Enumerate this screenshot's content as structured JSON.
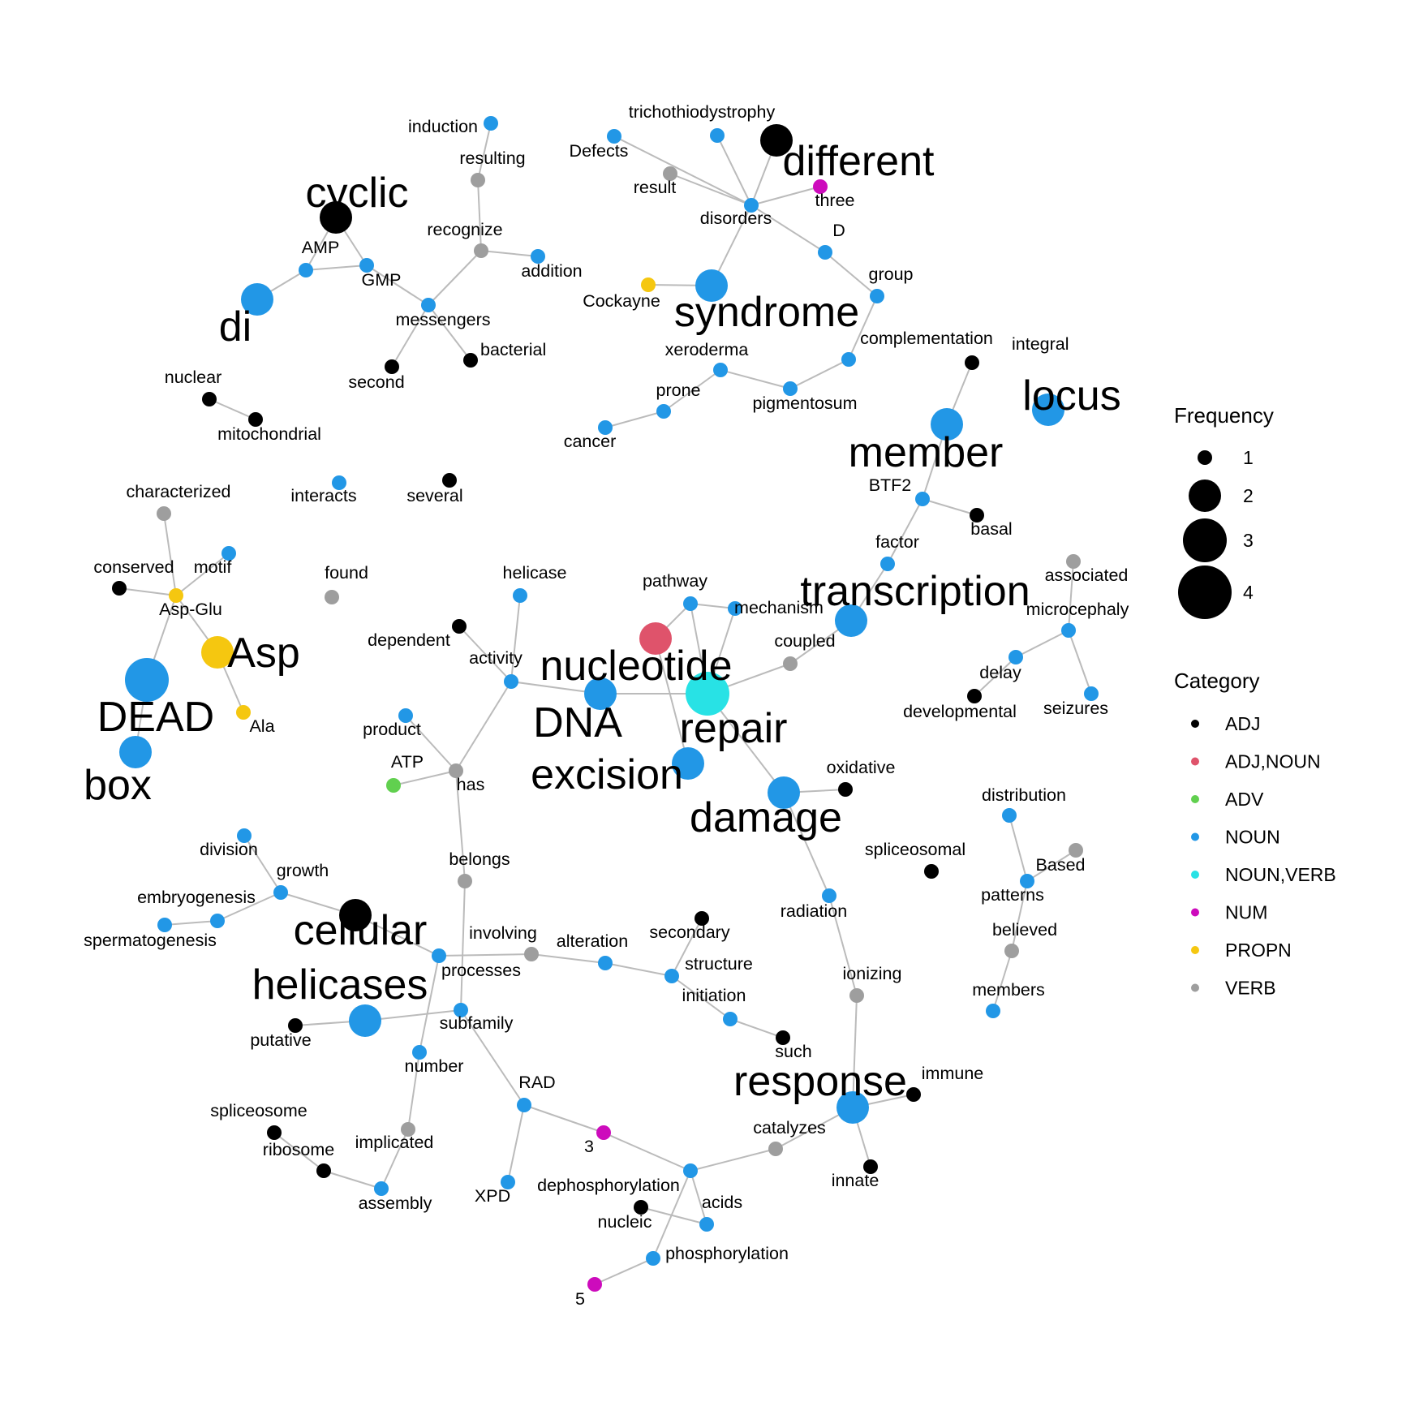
{
  "legend": {
    "frequency_title": "Frequency",
    "frequency_levels": [
      {
        "value": 1,
        "label": "1"
      },
      {
        "value": 2,
        "label": "2"
      },
      {
        "value": 3,
        "label": "3"
      },
      {
        "value": 4,
        "label": "4"
      }
    ],
    "category_title": "Category",
    "categories": [
      {
        "name": "ADJ",
        "color": "#000000"
      },
      {
        "name": "ADJ,NOUN",
        "color": "#DF536B"
      },
      {
        "name": "ADV",
        "color": "#61D04F"
      },
      {
        "name": "NOUN",
        "color": "#2297E6"
      },
      {
        "name": "NOUN,VERB",
        "color": "#28E2E5"
      },
      {
        "name": "NUM",
        "color": "#CD0BBC"
      },
      {
        "name": "PROPN",
        "color": "#F5C710"
      },
      {
        "name": "VERB",
        "color": "#9E9E9E"
      }
    ]
  },
  "nodes": [
    {
      "id": "induction",
      "label": "induction",
      "category": "NOUN",
      "frequency": 1
    },
    {
      "id": "resulting",
      "label": "resulting",
      "category": "VERB",
      "frequency": 1
    },
    {
      "id": "recognize",
      "label": "recognize",
      "category": "VERB",
      "frequency": 1
    },
    {
      "id": "addition",
      "label": "addition",
      "category": "NOUN",
      "frequency": 1
    },
    {
      "id": "messengers",
      "label": "messengers",
      "category": "NOUN",
      "frequency": 1
    },
    {
      "id": "second",
      "label": "second",
      "category": "ADJ",
      "frequency": 1
    },
    {
      "id": "bacterial",
      "label": "bacterial",
      "category": "ADJ",
      "frequency": 1
    },
    {
      "id": "cyclic",
      "label": "cyclic",
      "category": "ADJ",
      "frequency": 2
    },
    {
      "id": "AMP",
      "label": "AMP",
      "category": "NOUN",
      "frequency": 1
    },
    {
      "id": "GMP",
      "label": "GMP",
      "category": "NOUN",
      "frequency": 1
    },
    {
      "id": "di",
      "label": "di",
      "category": "NOUN",
      "frequency": 2
    },
    {
      "id": "nuclear",
      "label": "nuclear",
      "category": "ADJ",
      "frequency": 1
    },
    {
      "id": "mitochondrial",
      "label": "mitochondrial",
      "category": "ADJ",
      "frequency": 1
    },
    {
      "id": "interacts",
      "label": "interacts",
      "category": "NOUN",
      "frequency": 1
    },
    {
      "id": "several",
      "label": "several",
      "category": "ADJ",
      "frequency": 1
    },
    {
      "id": "trichothiodystrophy",
      "label": "trichothiodystrophy",
      "category": "NOUN",
      "frequency": 1
    },
    {
      "id": "Defects",
      "label": "Defects",
      "category": "NOUN",
      "frequency": 1
    },
    {
      "id": "result",
      "label": "result",
      "category": "VERB",
      "frequency": 1
    },
    {
      "id": "different",
      "label": "different",
      "category": "ADJ",
      "frequency": 2
    },
    {
      "id": "three",
      "label": "three",
      "category": "NUM",
      "frequency": 1
    },
    {
      "id": "disorders",
      "label": "disorders",
      "category": "NOUN",
      "frequency": 1
    },
    {
      "id": "D",
      "label": "D",
      "category": "NOUN",
      "frequency": 1
    },
    {
      "id": "group",
      "label": "group",
      "category": "NOUN",
      "frequency": 1
    },
    {
      "id": "Cockayne",
      "label": "Cockayne",
      "category": "PROPN",
      "frequency": 1
    },
    {
      "id": "syndrome",
      "label": "syndrome",
      "category": "NOUN",
      "frequency": 2
    },
    {
      "id": "complementation",
      "label": "complementation",
      "category": "NOUN",
      "frequency": 1
    },
    {
      "id": "xeroderma",
      "label": "xeroderma",
      "category": "NOUN",
      "frequency": 1
    },
    {
      "id": "prone",
      "label": "prone",
      "category": "NOUN",
      "frequency": 1
    },
    {
      "id": "pigmentosum",
      "label": "pigmentosum",
      "category": "NOUN",
      "frequency": 1
    },
    {
      "id": "cancer",
      "label": "cancer",
      "category": "NOUN",
      "frequency": 1
    },
    {
      "id": "integral",
      "label": "integral",
      "category": "ADJ",
      "frequency": 1
    },
    {
      "id": "locus",
      "label": "locus",
      "category": "NOUN",
      "frequency": 2
    },
    {
      "id": "member",
      "label": "member",
      "category": "NOUN",
      "frequency": 2
    },
    {
      "id": "BTF2",
      "label": "BTF2",
      "category": "NOUN",
      "frequency": 1
    },
    {
      "id": "basal",
      "label": "basal",
      "category": "ADJ",
      "frequency": 1
    },
    {
      "id": "factor",
      "label": "factor",
      "category": "NOUN",
      "frequency": 1
    },
    {
      "id": "transcription",
      "label": "transcription",
      "category": "NOUN",
      "frequency": 2
    },
    {
      "id": "associated",
      "label": "associated",
      "category": "VERB",
      "frequency": 1
    },
    {
      "id": "microcephaly",
      "label": "microcephaly",
      "category": "NOUN",
      "frequency": 1
    },
    {
      "id": "delay",
      "label": "delay",
      "category": "NOUN",
      "frequency": 1
    },
    {
      "id": "developmental",
      "label": "developmental",
      "category": "ADJ",
      "frequency": 1
    },
    {
      "id": "seizures",
      "label": "seizures",
      "category": "NOUN",
      "frequency": 1
    },
    {
      "id": "characterized",
      "label": "characterized",
      "category": "VERB",
      "frequency": 1
    },
    {
      "id": "conserved",
      "label": "conserved",
      "category": "ADJ",
      "frequency": 1
    },
    {
      "id": "motif",
      "label": "motif",
      "category": "NOUN",
      "frequency": 1
    },
    {
      "id": "Asp-Glu",
      "label": "Asp-Glu",
      "category": "PROPN",
      "frequency": 1
    },
    {
      "id": "Asp",
      "label": "Asp",
      "category": "PROPN",
      "frequency": 2
    },
    {
      "id": "Ala",
      "label": "Ala",
      "category": "PROPN",
      "frequency": 1
    },
    {
      "id": "DEAD",
      "label": "DEAD",
      "category": "NOUN",
      "frequency": 3
    },
    {
      "id": "box",
      "label": "box",
      "category": "NOUN",
      "frequency": 2
    },
    {
      "id": "found",
      "label": "found",
      "category": "VERB",
      "frequency": 1
    },
    {
      "id": "helicase",
      "label": "helicase",
      "category": "NOUN",
      "frequency": 1
    },
    {
      "id": "dependent",
      "label": "dependent",
      "category": "ADJ",
      "frequency": 1
    },
    {
      "id": "activity",
      "label": "activity",
      "category": "NOUN",
      "frequency": 1
    },
    {
      "id": "pathway",
      "label": "pathway",
      "category": "NOUN",
      "frequency": 1
    },
    {
      "id": "mechanism",
      "label": "mechanism",
      "category": "NOUN",
      "frequency": 1
    },
    {
      "id": "nucleotide",
      "label": "nucleotide",
      "category": "ADJ,NOUN",
      "frequency": 2
    },
    {
      "id": "coupled",
      "label": "coupled",
      "category": "VERB",
      "frequency": 1
    },
    {
      "id": "DNA",
      "label": "DNA",
      "category": "NOUN",
      "frequency": 2
    },
    {
      "id": "repair",
      "label": "repair",
      "category": "NOUN,VERB",
      "frequency": 3
    },
    {
      "id": "excision",
      "label": "excision",
      "category": "NOUN",
      "frequency": 2
    },
    {
      "id": "damage",
      "label": "damage",
      "category": "NOUN",
      "frequency": 2
    },
    {
      "id": "oxidative",
      "label": "oxidative",
      "category": "ADJ",
      "frequency": 1
    },
    {
      "id": "product",
      "label": "product",
      "category": "NOUN",
      "frequency": 1
    },
    {
      "id": "ATP",
      "label": "ATP",
      "category": "ADV",
      "frequency": 1
    },
    {
      "id": "has",
      "label": "has",
      "category": "VERB",
      "frequency": 1
    },
    {
      "id": "distribution",
      "label": "distribution",
      "category": "NOUN",
      "frequency": 1
    },
    {
      "id": "Based",
      "label": "Based",
      "category": "VERB",
      "frequency": 1
    },
    {
      "id": "patterns",
      "label": "patterns",
      "category": "NOUN",
      "frequency": 1
    },
    {
      "id": "believed",
      "label": "believed",
      "category": "VERB",
      "frequency": 1
    },
    {
      "id": "members",
      "label": "members",
      "category": "NOUN",
      "frequency": 1
    },
    {
      "id": "spliceosomal",
      "label": "spliceosomal",
      "category": "ADJ",
      "frequency": 1
    },
    {
      "id": "division",
      "label": "division",
      "category": "NOUN",
      "frequency": 1
    },
    {
      "id": "growth",
      "label": "growth",
      "category": "NOUN",
      "frequency": 1
    },
    {
      "id": "embryogenesis",
      "label": "embryogenesis",
      "category": "NOUN",
      "frequency": 1
    },
    {
      "id": "spermatogenesis",
      "label": "spermatogenesis",
      "category": "NOUN",
      "frequency": 1
    },
    {
      "id": "cellular",
      "label": "cellular",
      "category": "ADJ",
      "frequency": 2
    },
    {
      "id": "belongs",
      "label": "belongs",
      "category": "VERB",
      "frequency": 1
    },
    {
      "id": "involving",
      "label": "involving",
      "category": "VERB",
      "frequency": 1
    },
    {
      "id": "alteration",
      "label": "alteration",
      "category": "NOUN",
      "frequency": 1
    },
    {
      "id": "secondary",
      "label": "secondary",
      "category": "ADJ",
      "frequency": 1
    },
    {
      "id": "structure",
      "label": "structure",
      "category": "NOUN",
      "frequency": 1
    },
    {
      "id": "processes",
      "label": "processes",
      "category": "NOUN",
      "frequency": 1
    },
    {
      "id": "initiation",
      "label": "initiation",
      "category": "NOUN",
      "frequency": 1
    },
    {
      "id": "such",
      "label": "such",
      "category": "ADJ",
      "frequency": 1
    },
    {
      "id": "radiation",
      "label": "radiation",
      "category": "NOUN",
      "frequency": 1
    },
    {
      "id": "ionizing",
      "label": "ionizing",
      "category": "VERB",
      "frequency": 1
    },
    {
      "id": "helicases",
      "label": "helicases",
      "category": "NOUN",
      "frequency": 2
    },
    {
      "id": "putative",
      "label": "putative",
      "category": "ADJ",
      "frequency": 1
    },
    {
      "id": "subfamily",
      "label": "subfamily",
      "category": "NOUN",
      "frequency": 1
    },
    {
      "id": "number",
      "label": "number",
      "category": "NOUN",
      "frequency": 1
    },
    {
      "id": "response",
      "label": "response",
      "category": "NOUN",
      "frequency": 2
    },
    {
      "id": "immune",
      "label": "immune",
      "category": "ADJ",
      "frequency": 1
    },
    {
      "id": "catalyzes",
      "label": "catalyzes",
      "category": "VERB",
      "frequency": 1
    },
    {
      "id": "innate",
      "label": "innate",
      "category": "ADJ",
      "frequency": 1
    },
    {
      "id": "RAD",
      "label": "RAD",
      "category": "NOUN",
      "frequency": 1
    },
    {
      "id": "3",
      "label": "3",
      "category": "NUM",
      "frequency": 1
    },
    {
      "id": "spliceosome",
      "label": "spliceosome",
      "category": "ADJ",
      "frequency": 1
    },
    {
      "id": "implicated",
      "label": "implicated",
      "category": "VERB",
      "frequency": 1
    },
    {
      "id": "ribosome",
      "label": "ribosome",
      "category": "ADJ",
      "frequency": 1
    },
    {
      "id": "assembly",
      "label": "assembly",
      "category": "NOUN",
      "frequency": 1
    },
    {
      "id": "XPD",
      "label": "XPD",
      "category": "NOUN",
      "frequency": 1
    },
    {
      "id": "dephosphorylation",
      "label": "dephosphorylation",
      "category": "NOUN",
      "frequency": 1
    },
    {
      "id": "acids",
      "label": "acids",
      "category": "NOUN",
      "frequency": 1
    },
    {
      "id": "nucleic",
      "label": "nucleic",
      "category": "ADJ",
      "frequency": 1
    },
    {
      "id": "phosphorylation",
      "label": "phosphorylation",
      "category": "NOUN",
      "frequency": 1
    },
    {
      "id": "5",
      "label": "5",
      "category": "NUM",
      "frequency": 1
    }
  ],
  "edges": [
    [
      "induction",
      "resulting"
    ],
    [
      "resulting",
      "recognize"
    ],
    [
      "recognize",
      "addition"
    ],
    [
      "recognize",
      "messengers"
    ],
    [
      "messengers",
      "second"
    ],
    [
      "messengers",
      "bacterial"
    ],
    [
      "messengers",
      "GMP"
    ],
    [
      "cyclic",
      "AMP"
    ],
    [
      "cyclic",
      "GMP"
    ],
    [
      "AMP",
      "GMP"
    ],
    [
      "AMP",
      "di"
    ],
    [
      "nuclear",
      "mitochondrial"
    ],
    [
      "Defects",
      "disorders"
    ],
    [
      "result",
      "disorders"
    ],
    [
      "trichothiodystrophy",
      "disorders"
    ],
    [
      "different",
      "disorders"
    ],
    [
      "three",
      "disorders"
    ],
    [
      "disorders",
      "D"
    ],
    [
      "disorders",
      "syndrome"
    ],
    [
      "D",
      "group"
    ],
    [
      "group",
      "complementation"
    ],
    [
      "Cockayne",
      "syndrome"
    ],
    [
      "complementation",
      "pigmentosum"
    ],
    [
      "pigmentosum",
      "xeroderma"
    ],
    [
      "xeroderma",
      "prone"
    ],
    [
      "prone",
      "cancer"
    ],
    [
      "integral",
      "member"
    ],
    [
      "member",
      "BTF2"
    ],
    [
      "BTF2",
      "basal"
    ],
    [
      "BTF2",
      "factor"
    ],
    [
      "factor",
      "transcription"
    ],
    [
      "transcription",
      "coupled"
    ],
    [
      "associated",
      "microcephaly"
    ],
    [
      "microcephaly",
      "delay"
    ],
    [
      "microcephaly",
      "seizures"
    ],
    [
      "delay",
      "developmental"
    ],
    [
      "characterized",
      "Asp-Glu"
    ],
    [
      "conserved",
      "Asp-Glu"
    ],
    [
      "motif",
      "Asp-Glu"
    ],
    [
      "Asp-Glu",
      "Asp"
    ],
    [
      "Asp-Glu",
      "DEAD"
    ],
    [
      "Asp",
      "Ala"
    ],
    [
      "DEAD",
      "box"
    ],
    [
      "helicase",
      "activity"
    ],
    [
      "dependent",
      "activity"
    ],
    [
      "activity",
      "DNA"
    ],
    [
      "activity",
      "has"
    ],
    [
      "pathway",
      "mechanism"
    ],
    [
      "pathway",
      "nucleotide"
    ],
    [
      "pathway",
      "repair"
    ],
    [
      "mechanism",
      "repair"
    ],
    [
      "nucleotide",
      "excision"
    ],
    [
      "DNA",
      "repair"
    ],
    [
      "repair",
      "coupled"
    ],
    [
      "repair",
      "damage"
    ],
    [
      "damage",
      "oxidative"
    ],
    [
      "damage",
      "radiation"
    ],
    [
      "product",
      "has"
    ],
    [
      "ATP",
      "has"
    ],
    [
      "has",
      "belongs"
    ],
    [
      "belongs",
      "subfamily"
    ],
    [
      "distribution",
      "patterns"
    ],
    [
      "Based",
      "patterns"
    ],
    [
      "patterns",
      "believed"
    ],
    [
      "believed",
      "members"
    ],
    [
      "division",
      "growth"
    ],
    [
      "growth",
      "embryogenesis"
    ],
    [
      "growth",
      "cellular"
    ],
    [
      "embryogenesis",
      "spermatogenesis"
    ],
    [
      "cellular",
      "processes"
    ],
    [
      "processes",
      "involving"
    ],
    [
      "involving",
      "alteration"
    ],
    [
      "alteration",
      "structure"
    ],
    [
      "secondary",
      "structure"
    ],
    [
      "structure",
      "initiation"
    ],
    [
      "initiation",
      "such"
    ],
    [
      "processes",
      "number"
    ],
    [
      "radiation",
      "ionizing"
    ],
    [
      "ionizing",
      "response"
    ],
    [
      "response",
      "immune"
    ],
    [
      "response",
      "innate"
    ],
    [
      "response",
      "catalyzes"
    ],
    [
      "putative",
      "helicases"
    ],
    [
      "helicases",
      "subfamily"
    ],
    [
      "subfamily",
      "RAD"
    ],
    [
      "RAD",
      "XPD"
    ],
    [
      "RAD",
      "3"
    ],
    [
      "3",
      "dephosphorylation"
    ],
    [
      "catalyzes",
      "dephosphorylation"
    ],
    [
      "dephosphorylation",
      "acids"
    ],
    [
      "nucleic",
      "acids"
    ],
    [
      "dephosphorylation",
      "phosphorylation"
    ],
    [
      "phosphorylation",
      "5"
    ],
    [
      "number",
      "implicated"
    ],
    [
      "implicated",
      "assembly"
    ],
    [
      "ribosome",
      "assembly"
    ],
    [
      "spliceosome",
      "ribosome"
    ]
  ]
}
